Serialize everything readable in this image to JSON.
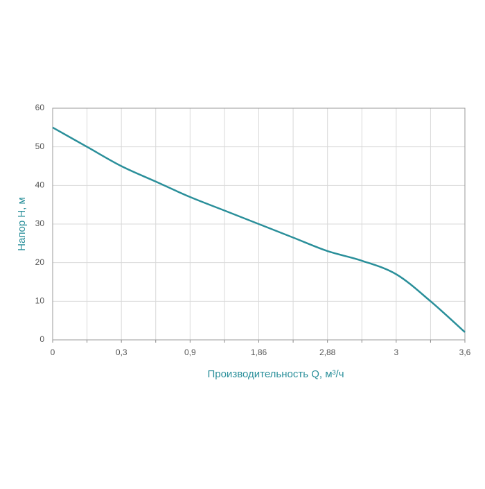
{
  "chart_data": {
    "type": "line",
    "x_label": "Производительность Q, м³/ч",
    "y_label": "Напор Н, м",
    "categories": [
      "0",
      null,
      "0,3",
      null,
      "0,9",
      null,
      "1,86",
      null,
      "2,88",
      null,
      "3",
      null,
      "3,6"
    ],
    "series": [
      {
        "name": "Напор",
        "color": "#2a8f9a",
        "values": [
          55,
          50,
          45,
          41,
          37,
          33.5,
          30,
          26.5,
          23,
          20.5,
          17,
          10,
          2
        ]
      }
    ],
    "ylim": [
      0,
      60
    ],
    "yticks": [
      0,
      10,
      20,
      30,
      40,
      50,
      60
    ],
    "grid": true
  }
}
